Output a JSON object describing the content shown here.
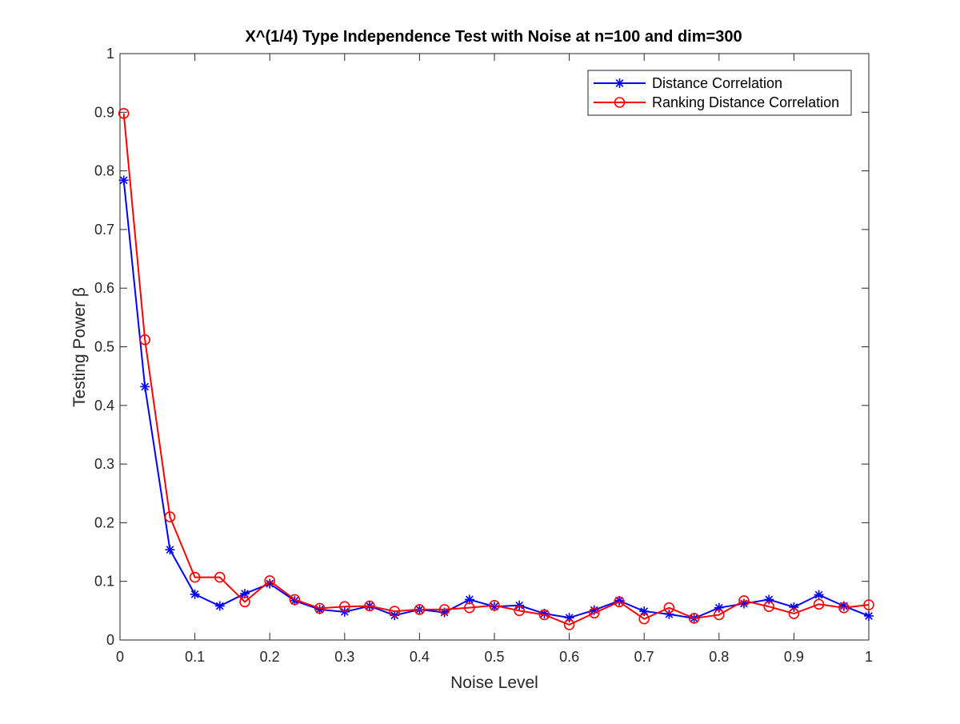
{
  "chart_data": {
    "type": "line",
    "title": "X^(1/4) Type Independence Test with Noise at n=100 and dim=300",
    "xlabel": "Noise Level",
    "ylabel": "Testing Power β",
    "xlim": [
      0,
      1
    ],
    "ylim": [
      0,
      1
    ],
    "xticks": [
      0,
      0.1,
      0.2,
      0.3,
      0.4,
      0.5,
      0.6,
      0.7,
      0.8,
      0.9,
      1
    ],
    "xtick_labels": [
      "0",
      "0.1",
      "0.2",
      "0.3",
      "0.4",
      "0.5",
      "0.6",
      "0.7",
      "0.8",
      "0.9",
      "1"
    ],
    "yticks": [
      0,
      0.1,
      0.2,
      0.3,
      0.4,
      0.5,
      0.6,
      0.7,
      0.8,
      0.9,
      1
    ],
    "ytick_labels": [
      "0",
      "0.1",
      "0.2",
      "0.3",
      "0.4",
      "0.5",
      "0.6",
      "0.7",
      "0.8",
      "0.9",
      "1"
    ],
    "grid": false,
    "legend_position": "top-right",
    "x": [
      0.005,
      0.0333,
      0.0667,
      0.1,
      0.1333,
      0.1667,
      0.2,
      0.2333,
      0.2667,
      0.3,
      0.3333,
      0.3667,
      0.4,
      0.4333,
      0.4667,
      0.5,
      0.5333,
      0.5667,
      0.6,
      0.6333,
      0.6667,
      0.7,
      0.7333,
      0.7667,
      0.8,
      0.8333,
      0.8667,
      0.9,
      0.9333,
      0.9667,
      1.0
    ],
    "series": [
      {
        "name": "Distance Correlation",
        "color": "#0000ff",
        "marker": "asterisk",
        "values": [
          0.784,
          0.432,
          0.154,
          0.078,
          0.058,
          0.079,
          0.096,
          0.067,
          0.052,
          0.048,
          0.058,
          0.042,
          0.052,
          0.047,
          0.069,
          0.057,
          0.059,
          0.045,
          0.038,
          0.051,
          0.067,
          0.049,
          0.044,
          0.037,
          0.055,
          0.062,
          0.069,
          0.056,
          0.077,
          0.058,
          0.041
        ]
      },
      {
        "name": "Ranking Distance Correlation",
        "color": "#ff0000",
        "marker": "circle",
        "values": [
          0.898,
          0.512,
          0.21,
          0.107,
          0.107,
          0.065,
          0.101,
          0.069,
          0.054,
          0.057,
          0.058,
          0.049,
          0.052,
          0.052,
          0.055,
          0.059,
          0.05,
          0.043,
          0.026,
          0.046,
          0.065,
          0.036,
          0.055,
          0.037,
          0.043,
          0.067,
          0.057,
          0.045,
          0.061,
          0.055,
          0.06
        ]
      }
    ]
  }
}
